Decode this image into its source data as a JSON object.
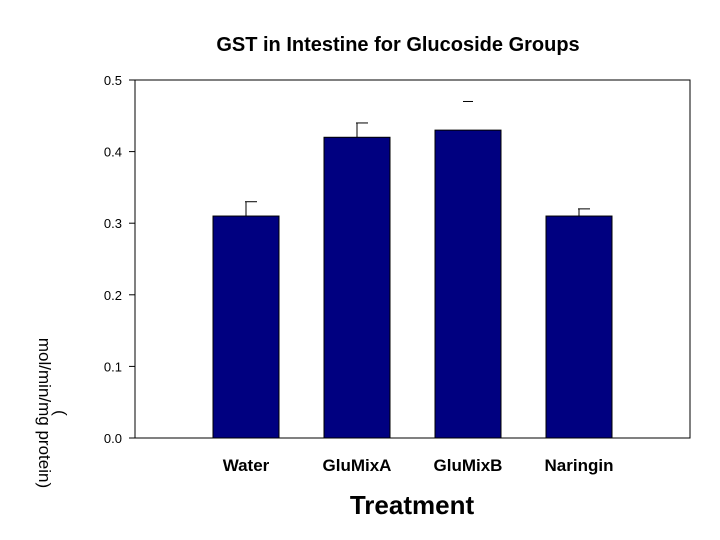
{
  "chart_data": {
    "type": "bar",
    "title": "GST in Intestine for Glucoside Groups",
    "xlabel": "Treatment",
    "ylabel_line1": "mol/min/mg protein)",
    "ylabel_line2": "(",
    "categories": [
      "Water",
      "GluMixA",
      "GluMixB",
      "Naringin"
    ],
    "values": [
      0.31,
      0.42,
      0.43,
      0.31
    ],
    "error_upper": [
      0.02,
      0.02,
      0.04,
      0.01
    ],
    "ylim": [
      0.0,
      0.5
    ],
    "yticks": [
      "0.0",
      "0.1",
      "0.2",
      "0.3",
      "0.4",
      "0.5"
    ],
    "grid": false,
    "legend": "none",
    "bar_color": "#000080"
  }
}
